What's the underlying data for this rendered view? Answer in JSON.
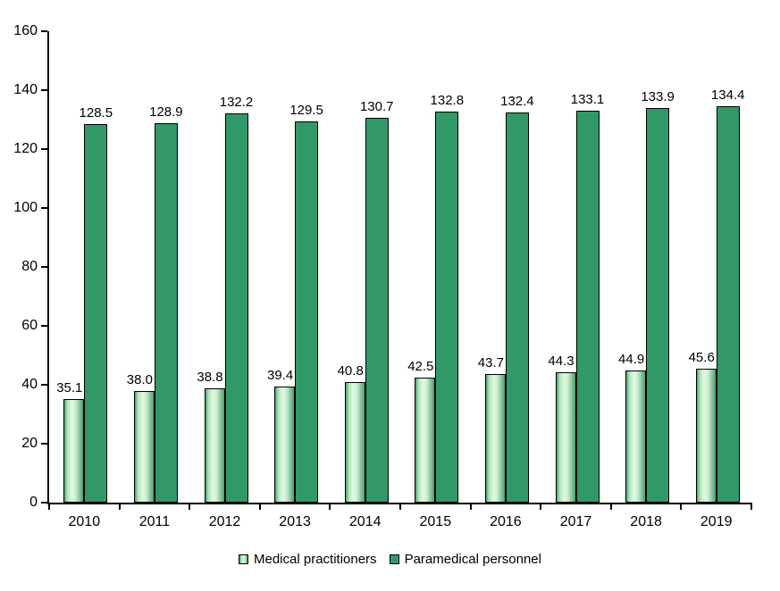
{
  "chart_data": {
    "type": "bar",
    "title": "",
    "categories": [
      "2010",
      "2011",
      "2012",
      "2013",
      "2014",
      "2015",
      "2016",
      "2017",
      "2018",
      "2019"
    ],
    "series": [
      {
        "name": "Medical practitioners",
        "fill": "gradient-light-green",
        "values": [
          35.1,
          38.0,
          38.8,
          39.4,
          40.8,
          42.5,
          43.7,
          44.3,
          44.9,
          45.6
        ]
      },
      {
        "name": "Paramedical personnel",
        "fill": "solid-dark-green",
        "values": [
          128.5,
          128.9,
          132.2,
          129.5,
          130.7,
          132.8,
          132.4,
          133.1,
          133.9,
          134.4
        ]
      }
    ],
    "xlabel": "",
    "ylabel": "",
    "ylim": [
      0,
      160
    ],
    "yticks": [
      0,
      20,
      40,
      60,
      80,
      100,
      120,
      140,
      160
    ],
    "grid": false,
    "data_labels": true,
    "data_label_decimals": 1,
    "legend_position": "bottom-center",
    "colors": {
      "dark_green": "#319967",
      "light_green_center": "#def9e0",
      "light_green_edge": "#4f9c70",
      "axis": "#000000",
      "text": "#000000",
      "background": "#ffffff"
    }
  }
}
